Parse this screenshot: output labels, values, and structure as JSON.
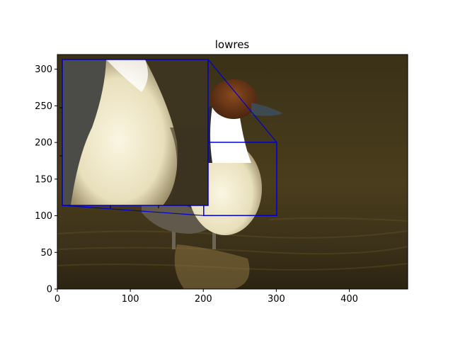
{
  "chart_data": {
    "type": "image",
    "title": "lowres",
    "xlabel": "",
    "ylabel": "",
    "xlim": [
      0,
      480
    ],
    "ylim": [
      0,
      320
    ],
    "xticks": [
      0,
      100,
      200,
      300,
      400
    ],
    "yticks": [
      0,
      50,
      100,
      150,
      200,
      250,
      300
    ],
    "grid": false,
    "inset": {
      "xlim": [
        200,
        300
      ],
      "ylim": [
        100,
        200
      ],
      "location": "upper-left",
      "edge_color": "#0000cc"
    },
    "colors": {
      "water_dark": "#2e2714",
      "water_light": "#5a4a22",
      "duck_body": "#f2ecd0",
      "duck_head": "#6b3514",
      "duck_neck": "#ffffff",
      "bill": "#3e4a52",
      "indicator": "#0000cc"
    }
  }
}
